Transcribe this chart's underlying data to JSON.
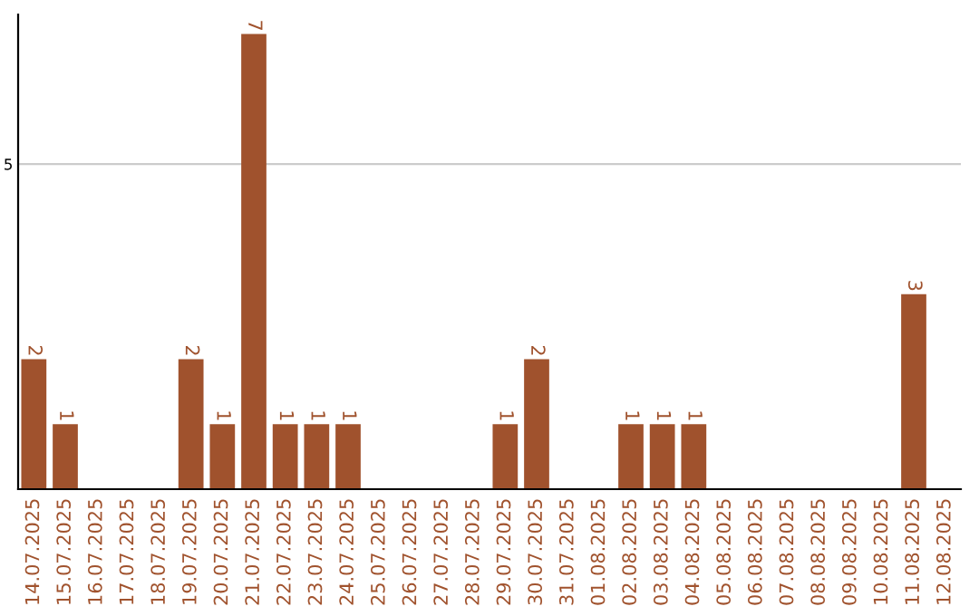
{
  "chart_data": {
    "type": "bar",
    "categories": [
      "14.07.2025",
      "15.07.2025",
      "16.07.2025",
      "17.07.2025",
      "18.07.2025",
      "19.07.2025",
      "20.07.2025",
      "21.07.2025",
      "22.07.2025",
      "23.07.2025",
      "24.07.2025",
      "25.07.2025",
      "26.07.2025",
      "27.07.2025",
      "28.07.2025",
      "29.07.2025",
      "30.07.2025",
      "31.07.2025",
      "01.08.2025",
      "02.08.2025",
      "03.08.2025",
      "04.08.2025",
      "05.08.2025",
      "06.08.2025",
      "07.08.2025",
      "08.08.2025",
      "09.08.2025",
      "10.08.2025",
      "11.08.2025",
      "12.08.2025"
    ],
    "values": [
      2,
      1,
      0,
      0,
      0,
      2,
      1,
      7,
      1,
      1,
      1,
      0,
      0,
      0,
      0,
      1,
      2,
      0,
      0,
      1,
      1,
      1,
      0,
      0,
      0,
      0,
      0,
      0,
      3,
      0
    ],
    "value_labels": [
      "2",
      "1",
      null,
      null,
      null,
      "2",
      "1",
      "7",
      "1",
      "1",
      "1",
      null,
      null,
      null,
      null,
      "1",
      "2",
      null,
      null,
      "1",
      "1",
      "1",
      null,
      null,
      null,
      null,
      null,
      null,
      "3",
      null
    ],
    "color": "#a0522d",
    "ylim": [
      0,
      7.3
    ],
    "yticks": [
      5
    ],
    "grid": "y"
  }
}
